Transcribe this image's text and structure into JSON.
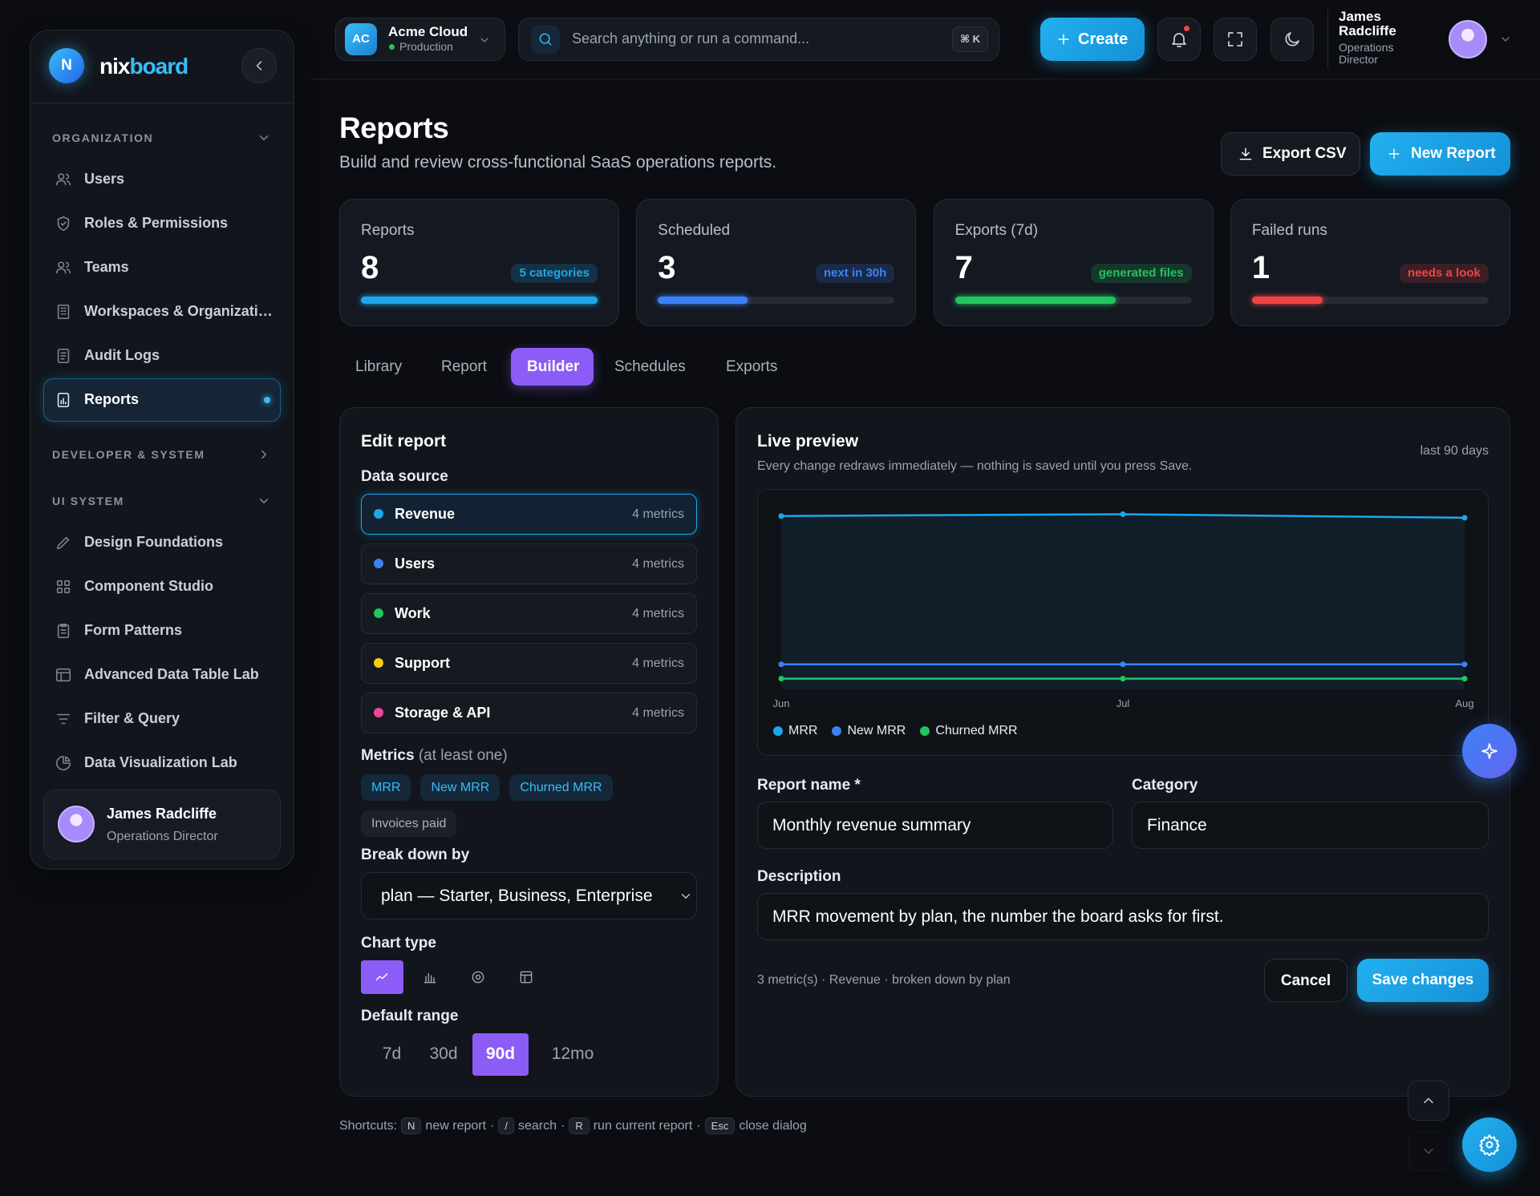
{
  "sidebar": {
    "logo": "N",
    "brand_a": "nix",
    "brand_b": "board",
    "groups": [
      {
        "title": "ORGANIZATION",
        "items": [
          "Users",
          "Roles & Permissions",
          "Teams",
          "Workspaces & Organizati…",
          "Audit Logs",
          "Reports"
        ]
      },
      {
        "title": "DEVELOPER & SYSTEM"
      },
      {
        "title": "UI SYSTEM",
        "items": [
          "Design Foundations",
          "Component Studio",
          "Form Patterns",
          "Advanced Data Table Lab",
          "Filter & Query",
          "Data Visualization Lab"
        ]
      }
    ],
    "active": {
      "group": 0,
      "item": 5
    },
    "user": {
      "name": "James Radcliffe",
      "role": "Operations Director"
    }
  },
  "topbar": {
    "workspace": {
      "initials": "AC",
      "name": "Acme Cloud",
      "env": "Production"
    },
    "search": "Search anything or run a command...",
    "shortcut": "⌘ K",
    "create": "Create",
    "user": {
      "name": "James Radcliffe",
      "role": "Operations Director"
    }
  },
  "header": {
    "title": "Reports",
    "subtitle": "Build and review cross-functional SaaS operations reports.",
    "export": "Export CSV",
    "new": "New Report"
  },
  "stats": [
    {
      "label": "Reports",
      "value": 8,
      "badge": "5 categories",
      "progress": 100,
      "color": "#1ea7e8"
    },
    {
      "label": "Scheduled",
      "value": 3,
      "badge": "next in 30h",
      "progress": 38,
      "color": "#3b82f6"
    },
    {
      "label": "Exports (7d)",
      "value": 7,
      "badge": "generated files",
      "progress": 68,
      "color": "#22c55e"
    },
    {
      "label": "Failed runs",
      "value": 1,
      "badge": "needs a look",
      "progress": 30,
      "color": "#ef4444"
    }
  ],
  "tabs": {
    "items": [
      "Library",
      "Report",
      "Builder",
      "Schedules",
      "Exports"
    ],
    "active": 2
  },
  "editor": {
    "title": "Edit report",
    "source_label": "Data source",
    "sources": [
      {
        "name": "Revenue",
        "meta": "4 metrics",
        "color": "#1ea7e8"
      },
      {
        "name": "Users",
        "meta": "4 metrics",
        "color": "#3b82f6"
      },
      {
        "name": "Work",
        "meta": "4 metrics",
        "color": "#22c55e"
      },
      {
        "name": "Support",
        "meta": "4 metrics",
        "color": "#facc15"
      },
      {
        "name": "Storage & API",
        "meta": "4 metrics",
        "color": "#ec4899"
      }
    ],
    "selected_source": 0,
    "metrics_label": "Metrics",
    "metrics_hint": "(at least one)",
    "metrics": [
      "MRR",
      "New MRR",
      "Churned MRR",
      "Invoices paid"
    ],
    "selected_metrics": [
      0,
      1,
      2
    ],
    "breakdown_label": "Break down by",
    "breakdown": "plan — Starter, Business, Enterprise",
    "chart_type_label": "Chart type",
    "active_chart_type": 0,
    "range_label": "Default range",
    "ranges": [
      "7d",
      "30d",
      "90d",
      "12mo"
    ],
    "active_range": 2
  },
  "preview": {
    "title": "Live preview",
    "subtitle": "Every change redraws immediately — nothing is saved until you press Save.",
    "range": "last 90 days",
    "chart_data": {
      "type": "line",
      "x": [
        "Jun",
        "Jul",
        "Aug"
      ],
      "ylim": [
        0,
        100
      ],
      "series": [
        {
          "name": "MRR",
          "color": "#1ea7e8",
          "values": [
            97,
            98,
            96
          ]
        },
        {
          "name": "New MRR",
          "color": "#3b82f6",
          "values": [
            14,
            14,
            14
          ]
        },
        {
          "name": "Churned MRR",
          "color": "#22c55e",
          "values": [
            6,
            6,
            6
          ]
        }
      ]
    },
    "name_label": "Report name *",
    "name": "Monthly revenue summary",
    "category_label": "Category",
    "category": "Finance",
    "description_label": "Description",
    "description": "MRR movement by plan, the number the board asks for first.",
    "summary": "3 metric(s) · Revenue · broken down by plan",
    "cancel": "Cancel",
    "save": "Save changes"
  },
  "shortcuts": {
    "label": "Shortcuts:",
    "separator": "·",
    "items": [
      {
        "key": "N",
        "text": "new report"
      },
      {
        "key": "/",
        "text": "search"
      },
      {
        "key": "R",
        "text": "run current report"
      },
      {
        "key": "Esc",
        "text": "close dialog"
      }
    ]
  }
}
